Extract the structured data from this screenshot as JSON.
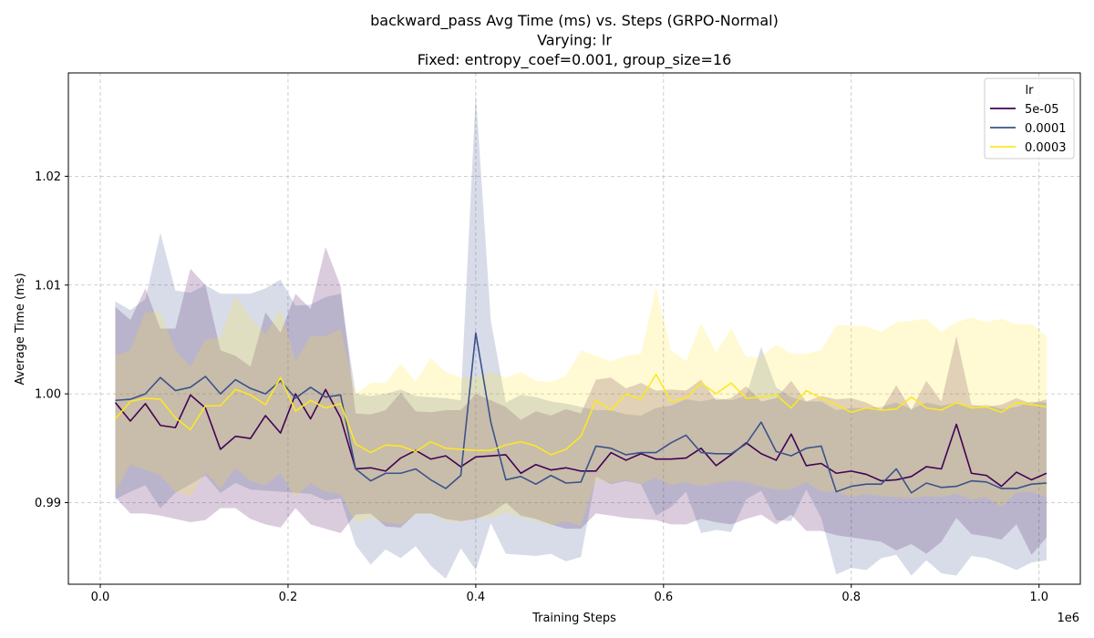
{
  "chart_data": {
    "type": "line",
    "title_lines": [
      "backward_pass Avg Time (ms) vs. Steps (GRPO-Normal)",
      "Varying: lr",
      "Fixed: entropy_coef=0.001, group_size=16"
    ],
    "xlabel": "Training Steps",
    "ylabel": "Average Time (ms)",
    "x_offset_label": "1e6",
    "xlim": [
      -0.034,
      1.044
    ],
    "ylim": [
      0.9825,
      1.0295
    ],
    "xticks": [
      0.0,
      0.2,
      0.4,
      0.6,
      0.8,
      1.0
    ],
    "xtick_labels": [
      "0.0",
      "0.2",
      "0.4",
      "0.6",
      "0.8",
      "1.0"
    ],
    "yticks": [
      0.99,
      1.0,
      1.01,
      1.02
    ],
    "ytick_labels": [
      "0.99",
      "1.00",
      "1.01",
      "1.02"
    ],
    "grid": true,
    "legend": {
      "title": "lr",
      "placement": "top-right"
    },
    "x": [
      0.016,
      0.032,
      0.048,
      0.064,
      0.08,
      0.096,
      0.112,
      0.128,
      0.144,
      0.16,
      0.176,
      0.192,
      0.208,
      0.224,
      0.24,
      0.256,
      0.272,
      0.288,
      0.304,
      0.32,
      0.336,
      0.352,
      0.368,
      0.384,
      0.4,
      0.416,
      0.432,
      0.448,
      0.464,
      0.48,
      0.496,
      0.512,
      0.528,
      0.544,
      0.56,
      0.576,
      0.592,
      0.608,
      0.624,
      0.64,
      0.656,
      0.672,
      0.688,
      0.704,
      0.72,
      0.736,
      0.752,
      0.768,
      0.784,
      0.8,
      0.816,
      0.832,
      0.848,
      0.864,
      0.88,
      0.896,
      0.912,
      0.928,
      0.944,
      0.96,
      0.976,
      0.992,
      1.008
    ],
    "series": [
      {
        "name": "5e-05",
        "color": "#440154",
        "mean": [
          0.9992,
          0.9975,
          0.9991,
          0.9971,
          0.9969,
          0.9999,
          0.9987,
          0.9949,
          0.9961,
          0.9959,
          0.998,
          0.9964,
          1.0,
          0.9977,
          1.0004,
          0.9978,
          0.9931,
          0.9932,
          0.9929,
          0.9941,
          0.9948,
          0.994,
          0.9943,
          0.9933,
          0.9942,
          0.9943,
          0.9944,
          0.9927,
          0.9935,
          0.993,
          0.9932,
          0.9929,
          0.9929,
          0.9946,
          0.9939,
          0.9945,
          0.994,
          0.994,
          0.9941,
          0.995,
          0.9934,
          0.9944,
          0.9955,
          0.9945,
          0.9939,
          0.9963,
          0.9934,
          0.9936,
          0.9927,
          0.9929,
          0.9926,
          0.992,
          0.9921,
          0.9924,
          0.9933,
          0.9931,
          0.9972,
          0.9927,
          0.9925,
          0.9915,
          0.9928,
          0.9921,
          0.9927
        ],
        "lower": [
          0.9905,
          0.989,
          0.989,
          0.9888,
          0.9885,
          0.9882,
          0.9884,
          0.9895,
          0.9895,
          0.9885,
          0.988,
          0.9877,
          0.9895,
          0.988,
          0.9876,
          0.9872,
          0.9889,
          0.989,
          0.9878,
          0.9877,
          0.989,
          0.989,
          0.9885,
          0.9883,
          0.9885,
          0.989,
          0.99,
          0.9888,
          0.9885,
          0.988,
          0.9876,
          0.9876,
          0.989,
          0.9888,
          0.9886,
          0.9885,
          0.9884,
          0.988,
          0.988,
          0.9885,
          0.9882,
          0.988,
          0.9885,
          0.9889,
          0.988,
          0.9889,
          0.9874,
          0.9874,
          0.987,
          0.9868,
          0.9866,
          0.9864,
          0.9856,
          0.9862,
          0.9853,
          0.9864,
          0.9886,
          0.9871,
          0.9869,
          0.9866,
          0.988,
          0.9852,
          0.9868
        ],
        "upper": [
          1.008,
          1.0068,
          1.0097,
          1.006,
          1.006,
          1.0115,
          1.01,
          1.004,
          1.0035,
          1.0025,
          1.0075,
          1.0056,
          1.0092,
          1.0078,
          1.0135,
          1.0099,
          0.9982,
          0.9981,
          0.9985,
          1.0001,
          0.9984,
          0.9983,
          0.9985,
          0.9985,
          1.0,
          0.9994,
          0.9988,
          0.9976,
          0.9984,
          0.998,
          0.9986,
          0.9982,
          1.0013,
          1.0015,
          1.0005,
          1.001,
          1.0003,
          1.0004,
          1.0003,
          1.0013,
          0.9994,
          0.9996,
          1.0007,
          0.9993,
          0.9996,
          1.0012,
          0.9993,
          0.9998,
          0.9995,
          0.9996,
          0.9992,
          0.9985,
          1.0008,
          0.9985,
          1.0012,
          0.9993,
          1.0053,
          0.999,
          0.9988,
          0.999,
          0.9996,
          0.9991,
          0.9995
        ]
      },
      {
        "name": "0.0001",
        "color": "#3b528b",
        "mean": [
          0.9994,
          0.9995,
          1.0,
          1.0015,
          1.0003,
          1.0006,
          1.0016,
          1.0,
          1.0013,
          1.0005,
          1.0,
          1.0012,
          0.9996,
          1.0006,
          0.9997,
          0.9999,
          0.9931,
          0.992,
          0.9927,
          0.9927,
          0.9931,
          0.9921,
          0.9913,
          0.9925,
          1.0056,
          0.9974,
          0.9921,
          0.9924,
          0.9917,
          0.9925,
          0.9918,
          0.9919,
          0.9952,
          0.995,
          0.9944,
          0.9946,
          0.9946,
          0.9955,
          0.9962,
          0.9946,
          0.9945,
          0.9945,
          0.9954,
          0.9974,
          0.9947,
          0.9943,
          0.995,
          0.9952,
          0.991,
          0.9915,
          0.9917,
          0.9917,
          0.9931,
          0.9909,
          0.9918,
          0.9914,
          0.9915,
          0.992,
          0.9919,
          0.9913,
          0.9913,
          0.9917,
          0.9918
        ],
        "lower": [
          0.9903,
          0.991,
          0.9916,
          0.9895,
          0.9909,
          0.9917,
          0.9925,
          0.9909,
          0.9918,
          0.9912,
          0.9911,
          0.991,
          0.9909,
          0.9908,
          0.9902,
          0.9904,
          0.9861,
          0.9843,
          0.9857,
          0.9849,
          0.986,
          0.9842,
          0.983,
          0.9858,
          0.9838,
          0.9881,
          0.9853,
          0.9852,
          0.9851,
          0.9853,
          0.9846,
          0.985,
          0.9924,
          0.9917,
          0.992,
          0.9917,
          0.9888,
          0.9896,
          0.991,
          0.9872,
          0.9875,
          0.9873,
          0.9903,
          0.9911,
          0.9884,
          0.9883,
          0.9912,
          0.9886,
          0.9834,
          0.984,
          0.9838,
          0.9849,
          0.9852,
          0.9833,
          0.9847,
          0.9835,
          0.9833,
          0.9851,
          0.9849,
          0.9844,
          0.9838,
          0.9845,
          0.9847
        ],
        "upper": [
          1.0085,
          1.0077,
          1.0087,
          1.0148,
          1.0095,
          1.0093,
          1.01,
          1.0092,
          1.0092,
          1.0092,
          1.0097,
          1.0105,
          1.0081,
          1.0082,
          1.0089,
          1.0092,
          1.0,
          0.9998,
          1.0,
          1.0004,
          0.9998,
          0.9997,
          0.9996,
          0.9994,
          1.0276,
          1.0067,
          0.9992,
          0.9999,
          0.9997,
          0.9993,
          0.9991,
          0.9988,
          0.9985,
          0.9985,
          0.9981,
          0.998,
          0.9987,
          0.9989,
          0.9995,
          0.9993,
          0.9996,
          0.9994,
          0.9998,
          1.0043,
          1.0006,
          0.9997,
          0.9993,
          0.9993,
          0.9985,
          0.9987,
          0.9987,
          0.9988,
          0.9992,
          0.9986,
          0.9992,
          0.9989,
          0.9992,
          0.9988,
          0.999,
          0.9986,
          0.9988,
          0.9993,
          0.9992
        ]
      },
      {
        "name": "0.0003",
        "color": "#fde725",
        "mean": [
          0.9977,
          0.9993,
          0.9996,
          0.9995,
          0.9978,
          0.9967,
          0.9989,
          0.9989,
          1.0004,
          0.9999,
          0.999,
          1.0015,
          0.9984,
          0.9994,
          0.9987,
          0.9991,
          0.9954,
          0.9946,
          0.9953,
          0.9952,
          0.9947,
          0.9956,
          0.995,
          0.9949,
          0.9948,
          0.9948,
          0.9953,
          0.9956,
          0.9952,
          0.9944,
          0.9949,
          0.9961,
          0.9994,
          0.9985,
          1.0,
          0.9995,
          1.0018,
          0.9993,
          0.9996,
          1.001,
          1.0,
          1.001,
          0.9996,
          0.9997,
          0.9999,
          0.9987,
          1.0003,
          0.9996,
          0.999,
          0.9983,
          0.9987,
          0.9985,
          0.9986,
          0.9997,
          0.9987,
          0.9985,
          0.9992,
          0.9987,
          0.9988,
          0.9983,
          0.9992,
          0.999,
          0.9988
        ],
        "lower": [
          0.991,
          0.9935,
          0.993,
          0.9925,
          0.991,
          0.9905,
          0.9928,
          0.9913,
          0.9932,
          0.992,
          0.9916,
          0.9927,
          0.9905,
          0.9918,
          0.991,
          0.9908,
          0.9881,
          0.9886,
          0.9882,
          0.988,
          0.9889,
          0.989,
          0.9883,
          0.9882,
          0.9886,
          0.9886,
          0.9891,
          0.9887,
          0.9883,
          0.9879,
          0.9883,
          0.9879,
          0.9921,
          0.9918,
          0.9921,
          0.9917,
          0.9923,
          0.9916,
          0.9919,
          0.9915,
          0.9918,
          0.992,
          0.9919,
          0.9915,
          0.9912,
          0.9912,
          0.9919,
          0.991,
          0.991,
          0.9905,
          0.9908,
          0.9906,
          0.9905,
          0.9904,
          0.9906,
          0.9905,
          0.9908,
          0.9903,
          0.9905,
          0.9896,
          0.9909,
          0.991,
          0.9905
        ],
        "upper": [
          1.0035,
          1.004,
          1.0075,
          1.0075,
          1.004,
          1.0025,
          1.005,
          1.0052,
          1.009,
          1.007,
          1.0055,
          1.0078,
          1.003,
          1.0053,
          1.0053,
          1.006,
          1.0,
          1.001,
          1.001,
          1.0028,
          1.0011,
          1.0033,
          1.002,
          1.0015,
          1.0015,
          1.002,
          1.0015,
          1.002,
          1.0012,
          1.0011,
          1.0017,
          1.004,
          1.0035,
          1.003,
          1.0035,
          1.0037,
          1.0098,
          1.004,
          1.003,
          1.0065,
          1.0038,
          1.006,
          1.0034,
          1.0034,
          1.0045,
          1.0037,
          1.0037,
          1.004,
          1.0063,
          1.0063,
          1.0062,
          1.0057,
          1.0066,
          1.0067,
          1.0069,
          1.0057,
          1.0066,
          1.007,
          1.0066,
          1.0069,
          1.0064,
          1.0064,
          1.0053
        ]
      }
    ]
  }
}
